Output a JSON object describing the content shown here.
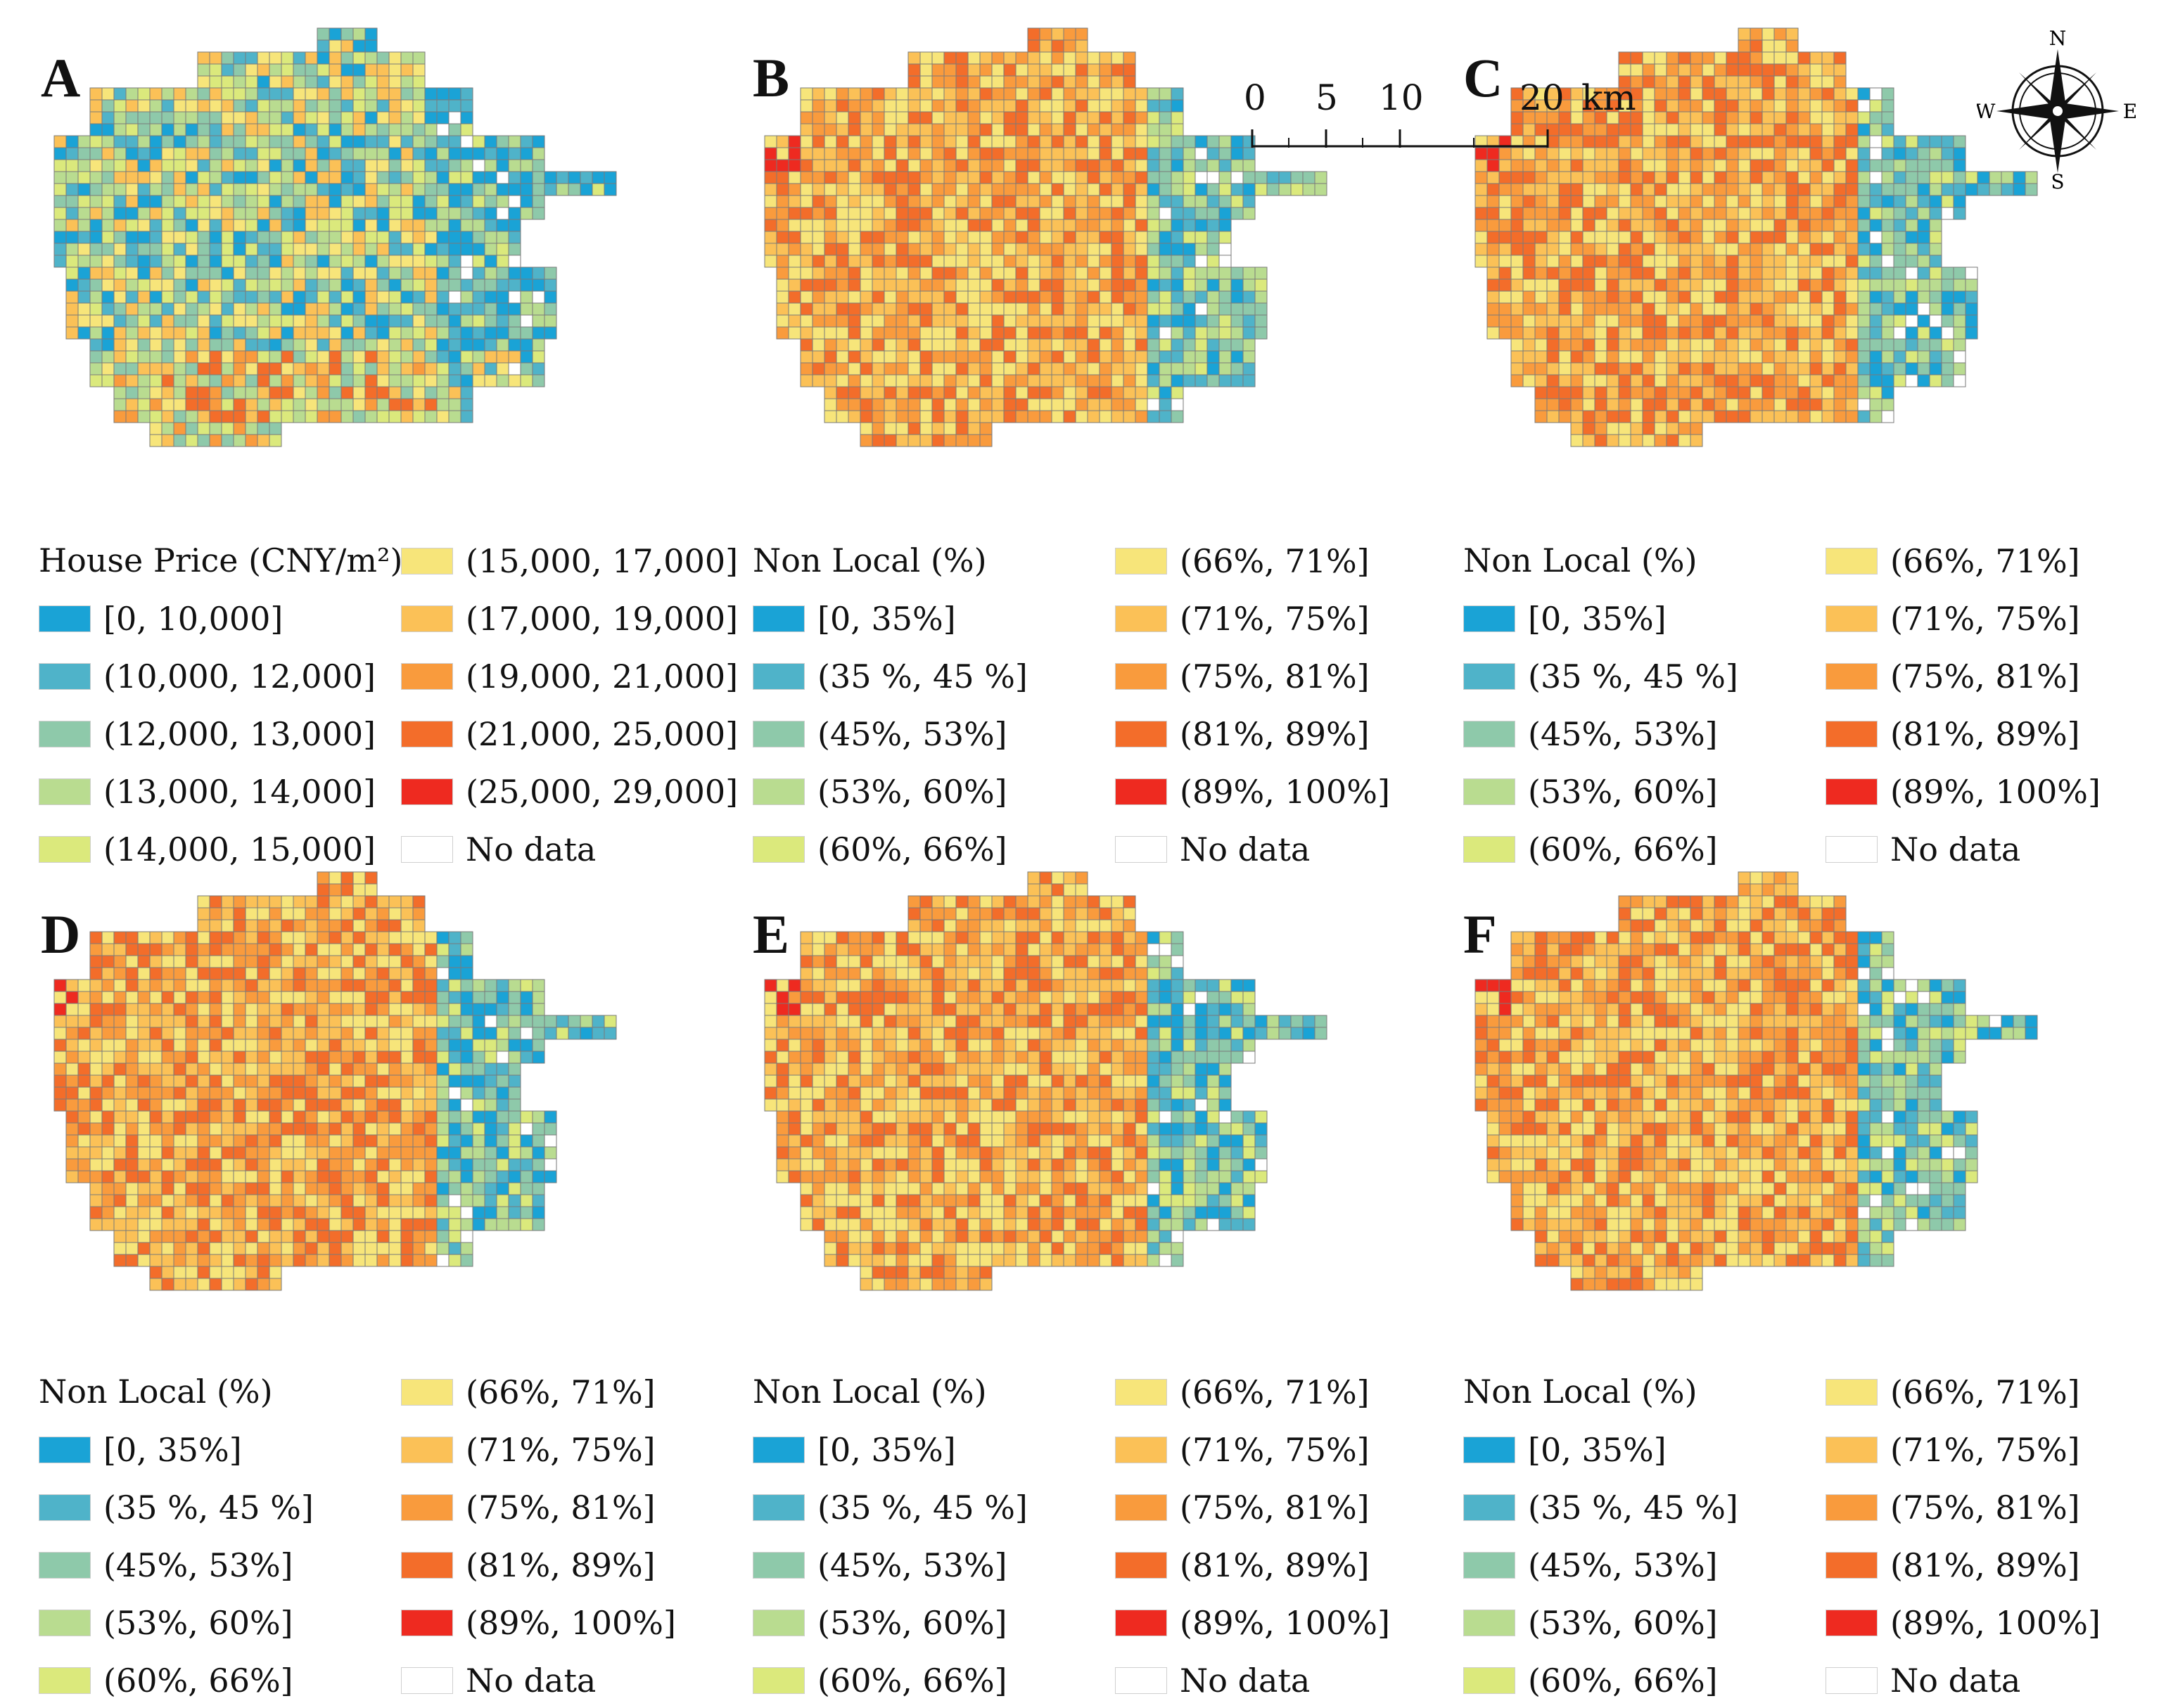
{
  "panels": [
    {
      "letter": "A",
      "legend_title": "House Price (CNY/m²)",
      "legend_key": "price"
    },
    {
      "letter": "B",
      "legend_title": "Non Local (%)",
      "legend_key": "nonlocal"
    },
    {
      "letter": "C",
      "legend_title": "Non Local (%)",
      "legend_key": "nonlocal"
    },
    {
      "letter": "D",
      "legend_title": "Non Local (%)",
      "legend_key": "nonlocal"
    },
    {
      "letter": "E",
      "legend_title": "Non Local (%)",
      "legend_key": "nonlocal"
    },
    {
      "letter": "F",
      "legend_title": "Non Local (%)",
      "legend_key": "nonlocal"
    }
  ],
  "legends": {
    "price": [
      {
        "label": "[0, 10,000]",
        "color": "#1aa3d6"
      },
      {
        "label": "(10,000, 12,000]",
        "color": "#4fb3c9"
      },
      {
        "label": "(12,000, 13,000]",
        "color": "#8ec9aa"
      },
      {
        "label": "(13,000, 14,000]",
        "color": "#b9dc90"
      },
      {
        "label": "(14,000, 15,000]",
        "color": "#dbe97c"
      },
      {
        "label": "(15,000, 17,000]",
        "color": "#f7e57a"
      },
      {
        "label": "(17,000, 19,000]",
        "color": "#fbc157"
      },
      {
        "label": "(19,000, 21,000]",
        "color": "#f99b3d"
      },
      {
        "label": "(21,000, 25,000]",
        "color": "#f36d2a"
      },
      {
        "label": "(25,000, 29,000]",
        "color": "#ee2a20"
      },
      {
        "label": "No data",
        "color": "#ffffff"
      }
    ],
    "nonlocal": [
      {
        "label": "[0, 35%]",
        "color": "#1aa3d6"
      },
      {
        "label": "(35 %, 45 %]",
        "color": "#4fb3c9"
      },
      {
        "label": "(45%, 53%]",
        "color": "#8ec9aa"
      },
      {
        "label": "(53%, 60%]",
        "color": "#b9dc90"
      },
      {
        "label": "(60%, 66%]",
        "color": "#dbe97c"
      },
      {
        "label": "(66%, 71%]",
        "color": "#f7e57a"
      },
      {
        "label": "(71%, 75%]",
        "color": "#fbc157"
      },
      {
        "label": "(75%, 81%]",
        "color": "#f99b3d"
      },
      {
        "label": "(81%, 89%]",
        "color": "#f36d2a"
      },
      {
        "label": "(89%, 100%]",
        "color": "#ee2a20"
      },
      {
        "label": "No data",
        "color": "#ffffff"
      }
    ]
  },
  "scale_bar": {
    "ticks": [
      "0",
      "5",
      "10",
      "20"
    ],
    "unit": "km"
  },
  "compass": {
    "north": "N",
    "south": "S",
    "east": "E",
    "west": "W"
  }
}
